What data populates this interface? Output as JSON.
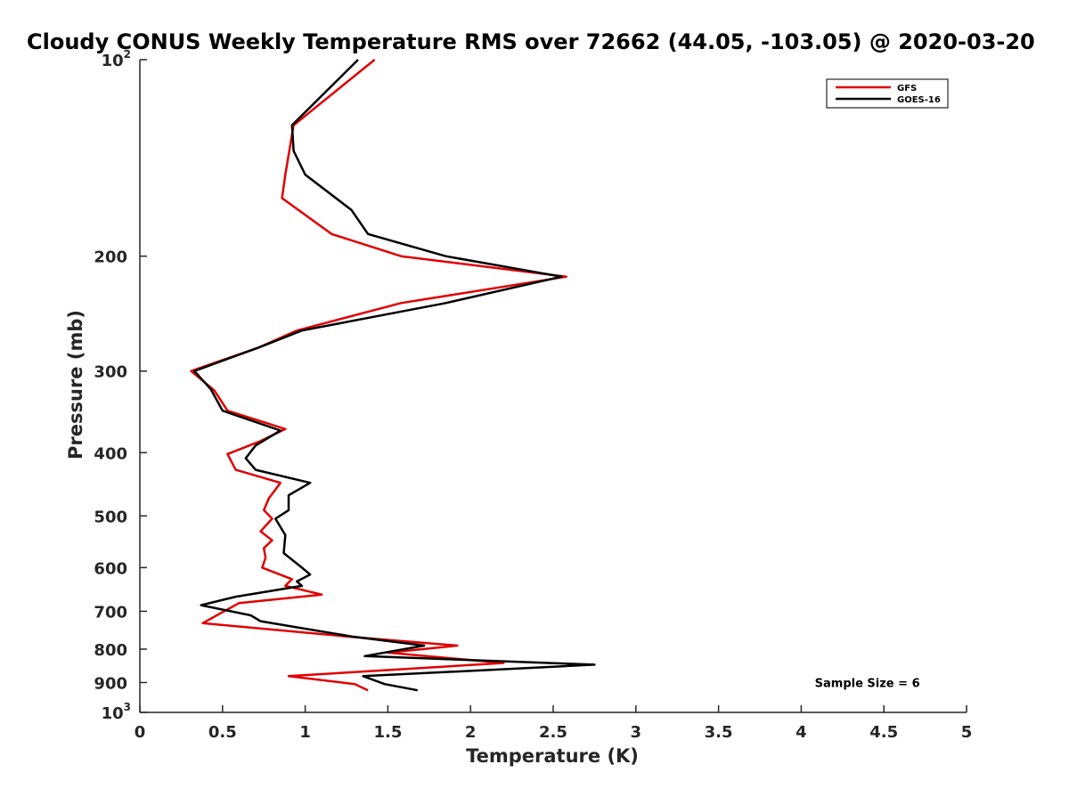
{
  "chart_data": {
    "type": "line",
    "title": "Cloudy CONUS Weekly Temperature RMS over 72662 (44.05, -103.05) @ 2020-03-20",
    "xlabel": "Temperature (K)",
    "ylabel": "Pressure (mb)",
    "xlim": [
      0,
      5
    ],
    "ylim": [
      100,
      1000
    ],
    "y_scale": "log",
    "y_reversed": true,
    "grid": false,
    "legend_position": "top-right",
    "x_ticks": [
      0,
      0.5,
      1,
      1.5,
      2,
      2.5,
      3,
      3.5,
      4,
      4.5,
      5
    ],
    "x_tick_labels": [
      "0",
      "0.5",
      "1",
      "1.5",
      "2",
      "2.5",
      "3",
      "3.5",
      "4",
      "4.5",
      "5"
    ],
    "y_ticks": [
      {
        "value": 100,
        "base": "10",
        "exp": "2"
      },
      {
        "value": 200,
        "label": "200"
      },
      {
        "value": 300,
        "label": "300"
      },
      {
        "value": 400,
        "label": "400"
      },
      {
        "value": 500,
        "label": "500"
      },
      {
        "value": 600,
        "label": "600"
      },
      {
        "value": 700,
        "label": "700"
      },
      {
        "value": 800,
        "label": "800"
      },
      {
        "value": 900,
        "label": "900"
      },
      {
        "value": 1000,
        "base": "10",
        "exp": "3"
      }
    ],
    "series": [
      {
        "name": "GFS",
        "color": "#e00000",
        "points": [
          [
            1.42,
            100
          ],
          [
            0.93,
            126
          ],
          [
            0.88,
            150
          ],
          [
            0.86,
            163
          ],
          [
            1.16,
            185
          ],
          [
            1.58,
            200
          ],
          [
            2.58,
            215
          ],
          [
            1.58,
            236
          ],
          [
            0.95,
            260
          ],
          [
            0.72,
            276
          ],
          [
            0.31,
            300
          ],
          [
            0.45,
            321
          ],
          [
            0.53,
            345
          ],
          [
            0.88,
            368
          ],
          [
            0.72,
            385
          ],
          [
            0.53,
            402
          ],
          [
            0.58,
            425
          ],
          [
            0.85,
            445
          ],
          [
            0.78,
            470
          ],
          [
            0.75,
            490
          ],
          [
            0.8,
            505
          ],
          [
            0.73,
            528
          ],
          [
            0.8,
            545
          ],
          [
            0.75,
            560
          ],
          [
            0.76,
            580
          ],
          [
            0.74,
            600
          ],
          [
            0.92,
            625
          ],
          [
            0.88,
            640
          ],
          [
            1.1,
            660
          ],
          [
            0.6,
            680
          ],
          [
            0.38,
            730
          ],
          [
            1.25,
            765
          ],
          [
            1.92,
            790
          ],
          [
            1.5,
            810
          ],
          [
            2.2,
            840
          ],
          [
            0.9,
            880
          ],
          [
            1.3,
            905
          ],
          [
            1.38,
            925
          ]
        ]
      },
      {
        "name": "GOES-16",
        "color": "#000000",
        "points": [
          [
            1.32,
            100
          ],
          [
            0.92,
            126
          ],
          [
            0.93,
            138
          ],
          [
            1.0,
            150
          ],
          [
            1.28,
            170
          ],
          [
            1.38,
            185
          ],
          [
            1.85,
            200
          ],
          [
            2.55,
            215
          ],
          [
            1.85,
            236
          ],
          [
            0.98,
            260
          ],
          [
            0.72,
            276
          ],
          [
            0.33,
            300
          ],
          [
            0.43,
            320
          ],
          [
            0.5,
            345
          ],
          [
            0.85,
            370
          ],
          [
            0.7,
            390
          ],
          [
            0.64,
            408
          ],
          [
            0.7,
            425
          ],
          [
            1.03,
            445
          ],
          [
            0.9,
            465
          ],
          [
            0.9,
            490
          ],
          [
            0.82,
            505
          ],
          [
            0.88,
            535
          ],
          [
            0.87,
            570
          ],
          [
            0.98,
            600
          ],
          [
            1.03,
            615
          ],
          [
            0.95,
            630
          ],
          [
            0.98,
            640
          ],
          [
            0.58,
            665
          ],
          [
            0.37,
            685
          ],
          [
            0.67,
            710
          ],
          [
            0.73,
            725
          ],
          [
            1.28,
            765
          ],
          [
            1.72,
            790
          ],
          [
            1.36,
            820
          ],
          [
            2.75,
            845
          ],
          [
            1.35,
            880
          ],
          [
            1.48,
            905
          ],
          [
            1.68,
            925
          ]
        ]
      }
    ],
    "annotations": [
      {
        "text": "Sample Size = 6",
        "x": 4.4,
        "y": 900
      }
    ]
  }
}
